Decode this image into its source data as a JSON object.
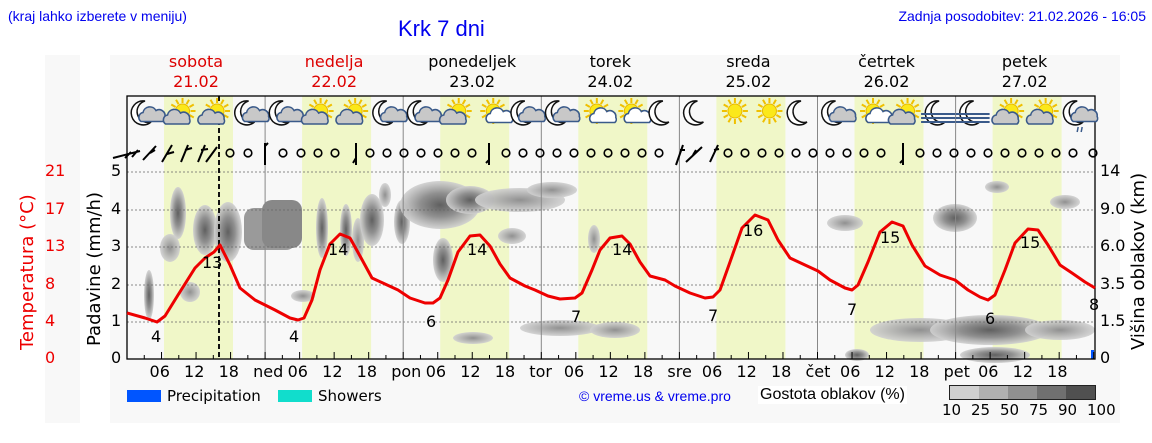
{
  "header": {
    "region_hint": "(kraj lahko izberete v meniju)",
    "title": "Krk 7 dni",
    "last_update": "Zadnja posodobitev: 21.02.2026 - 16:05"
  },
  "days": [
    {
      "name": "sobota",
      "date": "21.02",
      "color": "#dd0000"
    },
    {
      "name": "nedelja",
      "date": "22.02",
      "color": "#dd0000"
    },
    {
      "name": "ponedeljek",
      "date": "23.02",
      "color": "#000000"
    },
    {
      "name": "torek",
      "date": "24.02",
      "color": "#000000"
    },
    {
      "name": "sreda",
      "date": "25.02",
      "color": "#000000"
    },
    {
      "name": "četrtek",
      "date": "26.02",
      "color": "#000000"
    },
    {
      "name": "petek",
      "date": "27.02",
      "color": "#000000"
    }
  ],
  "axes": {
    "temp_label": "Temperatura (°C)",
    "temp_ticks": [
      "21",
      "17",
      "13",
      "8",
      "4",
      "0"
    ],
    "precip_label": "Padavine (mm/h)",
    "precip_ticks": [
      "5",
      "4",
      "3",
      "2",
      "1",
      "0"
    ],
    "cloud_label": "Višina oblakov (km)",
    "cloud_ticks": [
      "14",
      "9.0",
      "6.0",
      "3.5",
      "1.5",
      "0"
    ],
    "x_ticks": [
      "06",
      "12",
      "18",
      "ned",
      "06",
      "12",
      "18",
      "pon",
      "06",
      "12",
      "18",
      "tor",
      "06",
      "12",
      "18",
      "sre",
      "06",
      "12",
      "18",
      "čet",
      "06",
      "12",
      "18",
      "pet",
      "06",
      "12",
      "18"
    ]
  },
  "weather_icons": [
    "moon-cloud",
    "sun-cloud",
    "sun-cloud",
    "moon-cloud",
    "moon-cloud",
    "sun-cloud",
    "sun-cloud",
    "moon-cloud",
    "moon-cloud",
    "sun-cloud",
    "sun-small-cloud",
    "moon-cloud",
    "moon-cloud",
    "sun-small-cloud",
    "sun-small-cloud",
    "moon",
    "moon",
    "sun",
    "sun",
    "moon",
    "moon-cloud",
    "sun-small-cloud",
    "sun-cloud",
    "moon-fog",
    "moon-fog",
    "sun-cloud",
    "sun-cloud",
    "moon-cloud-rain"
  ],
  "legend": {
    "precipitation": {
      "label": "Precipitation",
      "color": "#0055ff"
    },
    "showers": {
      "label": "Showers",
      "color": "#11ddcc"
    },
    "copyright": "© vreme.us & vreme.pro",
    "cloud_density_label": "Gostota oblakov (%)",
    "cloud_density_scale": [
      "10",
      "25",
      "50",
      "75",
      "90",
      "100"
    ],
    "cloud_density_colors": [
      "#d0d0d0",
      "#b0b0b0",
      "#909090",
      "#707070",
      "#505050"
    ]
  },
  "colors": {
    "temperature_line": "#ee0000",
    "daylight_band": "#f0f7c8",
    "night_band": "#f8f8f8"
  },
  "chart_data": {
    "type": "line",
    "title": "Krk 7 dni",
    "xlabel": "",
    "ylabel": "Temperatura (°C)",
    "ylim": [
      0,
      21
    ],
    "grid": true,
    "now_marker": "21.02 16:05",
    "categories": [
      "21.02",
      "22.02",
      "23.02",
      "24.02",
      "25.02",
      "26.02",
      "27.02"
    ],
    "series": [
      {
        "name": "Temperatura min (°C)",
        "values": [
          4,
          4,
          6,
          7,
          7,
          7,
          6
        ]
      },
      {
        "name": "Temperatura max (°C)",
        "values": [
          13,
          14,
          14,
          14,
          16,
          15,
          15
        ]
      }
    ],
    "last_value_label": 8,
    "secondary_axes": {
      "precipitation_mm_h": [
        0,
        5
      ],
      "cloud_height_km_ticks": [
        0,
        1.5,
        3.5,
        6.0,
        9.0,
        14
      ]
    },
    "legend": [
      "Precipitation",
      "Showers",
      "Gostota oblakov (%)"
    ]
  }
}
